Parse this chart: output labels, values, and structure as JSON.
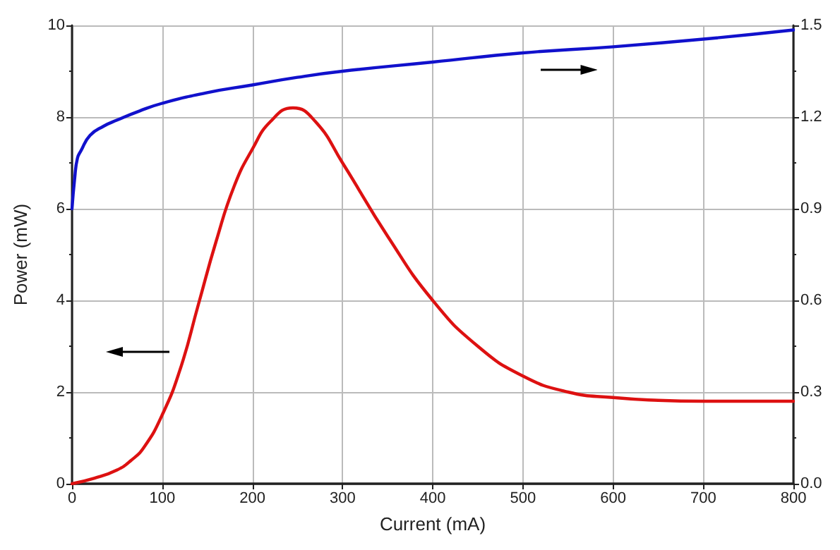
{
  "chart_data": {
    "type": "line",
    "xlabel": "Current (mA)",
    "ylabel": "Power (mW)",
    "xlim": [
      0,
      800
    ],
    "xticks": [
      0,
      100,
      200,
      300,
      400,
      500,
      600,
      700,
      800
    ],
    "ylim": [
      0,
      10
    ],
    "yticks": [
      0,
      2,
      4,
      6,
      8,
      10
    ],
    "y2lim": [
      0,
      1.5
    ],
    "y2ticks": [
      {
        "value": 0,
        "label": "0.0"
      },
      0.3,
      0.6,
      0.9,
      1.2,
      1.5
    ],
    "grid": true,
    "marker": "none",
    "line_style": "solid",
    "series": [
      {
        "color": "#dd1111",
        "x": [
          0,
          25,
          50,
          65,
          80,
          100,
          120,
          140,
          160,
          180,
          200,
          220,
          245,
          270,
          300,
          350,
          400,
          450,
          500,
          550,
          600,
          650,
          700,
          750,
          800
        ],
        "values": [
          0,
          0.12,
          0.3,
          0.5,
          0.8,
          1.5,
          2.5,
          3.9,
          5.3,
          6.5,
          7.3,
          7.9,
          8.2,
          7.9,
          7.0,
          5.4,
          4.0,
          3.0,
          2.35,
          2.0,
          1.88,
          1.82,
          1.8,
          1.8,
          1.8
        ]
      },
      {
        "color": "#1111cc",
        "axis": "y2",
        "x": [
          0,
          3,
          6,
          10,
          20,
          35,
          50,
          75,
          100,
          150,
          200,
          250,
          300,
          400,
          500,
          600,
          700,
          800
        ],
        "values": [
          0.9,
          1.0,
          1.065,
          1.09,
          1.14,
          1.17,
          1.19,
          1.22,
          1.245,
          1.28,
          1.305,
          1.33,
          1.35,
          1.38,
          1.41,
          1.43,
          1.455,
          1.485
        ]
      }
    ]
  }
}
